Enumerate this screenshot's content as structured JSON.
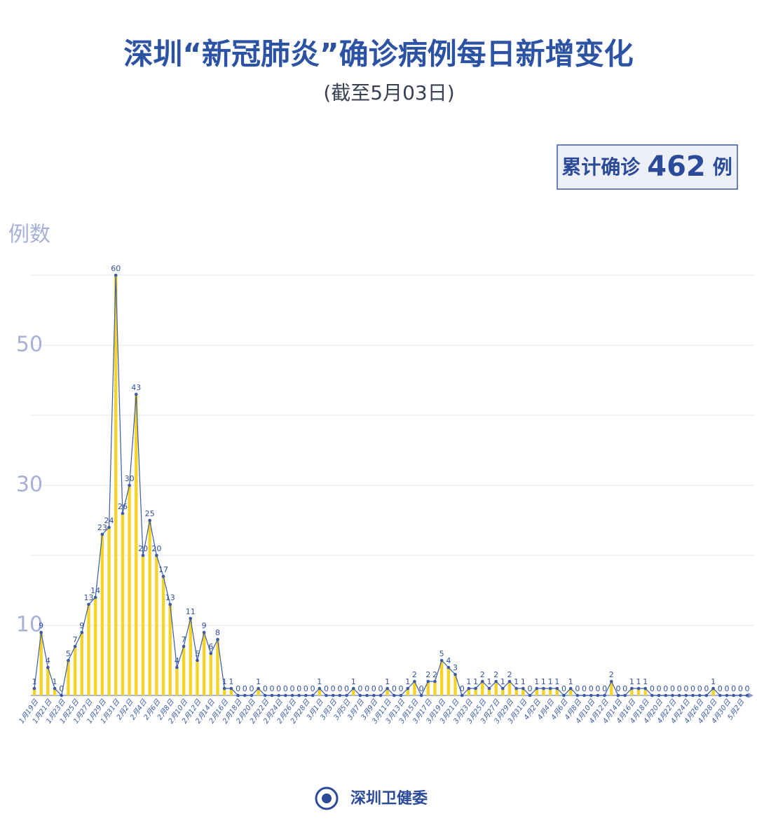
{
  "chart_data": {
    "type": "combo",
    "title": "深圳“新冠肺炎”确诊病例每日新增变化",
    "subtitle": "(截至5月03日)",
    "summary": {
      "label": "累计确诊",
      "value": 462,
      "unit": "例"
    },
    "ylabel": "例数",
    "source": "深圳卫健委",
    "categories": [
      "1月19日",
      null,
      "1月21日",
      null,
      "1月23日",
      null,
      "1月25日",
      null,
      "1月27日",
      null,
      "1月29日",
      null,
      "1月31日",
      null,
      "2月2日",
      null,
      "2月4日",
      null,
      "2月6日",
      null,
      "2月8日",
      null,
      "2月10日",
      null,
      "2月12日",
      null,
      "2月14日",
      null,
      "2月16日",
      null,
      "2月18日",
      null,
      "2月20日",
      null,
      "2月22日",
      null,
      "2月24日",
      null,
      "2月26日",
      null,
      "2月28日",
      null,
      "3月1日",
      null,
      "3月3日",
      null,
      "3月5日",
      null,
      "3月7日",
      null,
      "3月9日",
      null,
      "3月11日",
      null,
      "3月13日",
      null,
      "3月15日",
      null,
      "3月17日",
      null,
      "3月19日",
      null,
      "3月21日",
      null,
      "3月23日",
      null,
      "3月25日",
      null,
      "3月27日",
      null,
      "3月29日",
      null,
      "3月31日",
      null,
      "4月2日",
      null,
      "4月4日",
      null,
      "4月6日",
      null,
      "4月8日",
      null,
      "4月10日",
      null,
      "4月12日",
      null,
      "4月14日",
      null,
      "4月16日",
      null,
      "4月18日",
      null,
      "4月20日",
      null,
      "4月22日",
      null,
      "4月24日",
      null,
      "4月26日",
      null,
      "4月28日",
      null,
      "4月30日",
      null,
      "5月2日",
      null
    ],
    "values": [
      1,
      9,
      4,
      1,
      0,
      5,
      7,
      9,
      13,
      14,
      23,
      24,
      60,
      26,
      30,
      43,
      20,
      25,
      20,
      17,
      13,
      4,
      7,
      11,
      5,
      9,
      6,
      8,
      1,
      1,
      0,
      0,
      0,
      1,
      0,
      0,
      0,
      0,
      0,
      0,
      0,
      0,
      1,
      0,
      0,
      0,
      0,
      1,
      0,
      0,
      0,
      0,
      1,
      0,
      0,
      1,
      2,
      0,
      2,
      2,
      5,
      4,
      3,
      0,
      1,
      1,
      2,
      1,
      2,
      1,
      2,
      1,
      1,
      0,
      1,
      1,
      1,
      1,
      0,
      1,
      0,
      0,
      0,
      0,
      0,
      2,
      0,
      0,
      1,
      1,
      1,
      0,
      0,
      0,
      0,
      0,
      0,
      0,
      0,
      0,
      1,
      0,
      0,
      0,
      0,
      0
    ],
    "bar_color": "#f5d327",
    "line_color": "#3b5ba9",
    "ylim": [
      0,
      60
    ],
    "yticks": [
      10,
      30,
      50
    ],
    "ygrid_minor": [
      20,
      40,
      60
    ],
    "grid": true
  }
}
